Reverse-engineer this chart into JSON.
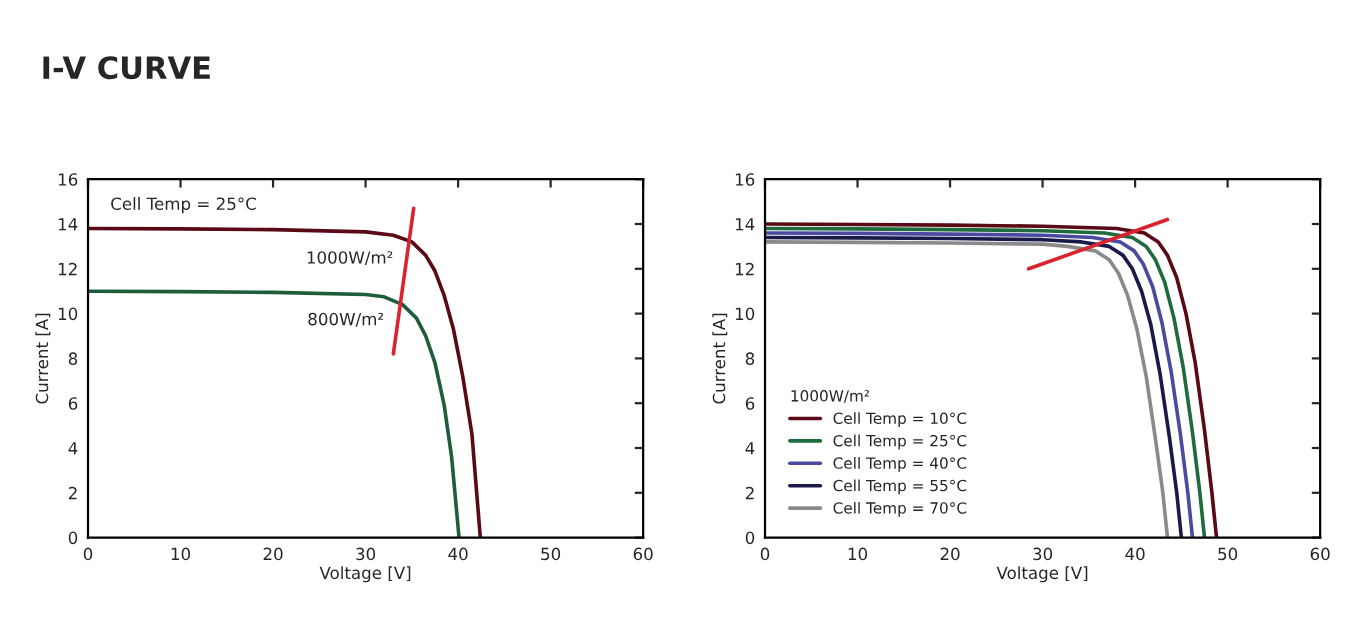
{
  "chart_data": [
    {
      "type": "line",
      "title": "I-V CURVE",
      "xlabel": "Voltage [V]",
      "ylabel": "Current [A]",
      "xlim": [
        0,
        60
      ],
      "ylim": [
        0,
        16
      ],
      "xticks": [
        0,
        10,
        20,
        30,
        40,
        50,
        60
      ],
      "yticks": [
        0,
        2,
        4,
        6,
        8,
        10,
        12,
        14,
        16
      ],
      "grid": false,
      "legend": false,
      "annotations": [
        "Cell Temp = 25°C"
      ],
      "series": [
        {
          "name": "1000W/m²",
          "color": "#5a0a14",
          "x": [
            0,
            10,
            20,
            30,
            33,
            35,
            36.5,
            37.5,
            38.5,
            39.5,
            40.5,
            41.5,
            42.4
          ],
          "values": [
            13.8,
            13.78,
            13.75,
            13.65,
            13.5,
            13.2,
            12.6,
            11.9,
            10.8,
            9.3,
            7.2,
            4.6,
            0
          ]
        },
        {
          "name": "800W/m²",
          "color": "#1e5c3a",
          "x": [
            0,
            10,
            20,
            30,
            32,
            34,
            35.5,
            36.5,
            37.5,
            38.5,
            39.3,
            40.1
          ],
          "values": [
            11.0,
            10.98,
            10.95,
            10.85,
            10.75,
            10.4,
            9.8,
            9.0,
            7.8,
            5.9,
            3.6,
            0
          ]
        },
        {
          "type": "line",
          "color": "#d9232e",
          "x": [
            33,
            35.2
          ],
          "values": [
            8.2,
            14.7
          ]
        }
      ]
    },
    {
      "type": "line",
      "xlabel": "Voltage [V]",
      "ylabel": "Current [A]",
      "xlim": [
        0,
        60
      ],
      "ylim": [
        0,
        16
      ],
      "xticks": [
        0,
        10,
        20,
        30,
        40,
        50,
        60
      ],
      "yticks": [
        0,
        2,
        4,
        6,
        8,
        10,
        12,
        14,
        16
      ],
      "grid": false,
      "legend": "bottom left",
      "legend_title": "1000W/m²",
      "series": [
        {
          "name": "Cell Temp = 10°C",
          "color": "#5a0a14",
          "x": [
            0,
            10,
            20,
            30,
            38,
            41,
            42.5,
            43.5,
            44.5,
            45.5,
            46.5,
            47.5,
            48.3,
            48.8
          ],
          "values": [
            14.0,
            13.98,
            13.95,
            13.9,
            13.8,
            13.6,
            13.2,
            12.6,
            11.6,
            10.0,
            7.8,
            4.8,
            2.0,
            0
          ]
        },
        {
          "name": "Cell Temp = 25°C",
          "color": "#1e6b3c",
          "x": [
            0,
            10,
            20,
            30,
            36.7,
            39.7,
            41.2,
            42.2,
            43.2,
            44.2,
            45.2,
            46.2,
            47.0,
            47.5
          ],
          "values": [
            13.8,
            13.78,
            13.75,
            13.7,
            13.6,
            13.4,
            13.0,
            12.4,
            11.4,
            9.8,
            7.6,
            4.7,
            2.0,
            0
          ]
        },
        {
          "name": "Cell Temp = 40°C",
          "color": "#4a4aa0",
          "x": [
            0,
            10,
            20,
            30,
            35.4,
            38.4,
            39.9,
            40.9,
            41.9,
            42.9,
            43.9,
            44.9,
            45.7,
            46.2
          ],
          "values": [
            13.6,
            13.58,
            13.55,
            13.5,
            13.4,
            13.2,
            12.8,
            12.2,
            11.2,
            9.6,
            7.4,
            4.6,
            2.0,
            0
          ]
        },
        {
          "name": "Cell Temp = 55°C",
          "color": "#1a1a4a",
          "x": [
            0,
            10,
            20,
            30,
            34.2,
            37.2,
            38.7,
            39.7,
            40.7,
            41.7,
            42.7,
            43.7,
            44.5,
            45.0
          ],
          "values": [
            13.4,
            13.38,
            13.35,
            13.3,
            13.2,
            13.0,
            12.6,
            12.0,
            11.0,
            9.5,
            7.3,
            4.5,
            2.0,
            0
          ]
        },
        {
          "name": "Cell Temp = 70°C",
          "color": "#8a8a8a",
          "x": [
            0,
            10,
            20,
            30,
            32.7,
            35.7,
            37.2,
            38.2,
            39.2,
            40.2,
            41.2,
            42.2,
            43.0,
            43.5
          ],
          "values": [
            13.2,
            13.18,
            13.15,
            13.1,
            13.0,
            12.8,
            12.4,
            11.8,
            10.8,
            9.3,
            7.2,
            4.4,
            2.0,
            0
          ]
        },
        {
          "type": "line",
          "color": "#d9232e",
          "x": [
            28.5,
            43.5
          ],
          "values": [
            12.0,
            14.2
          ]
        }
      ]
    }
  ]
}
